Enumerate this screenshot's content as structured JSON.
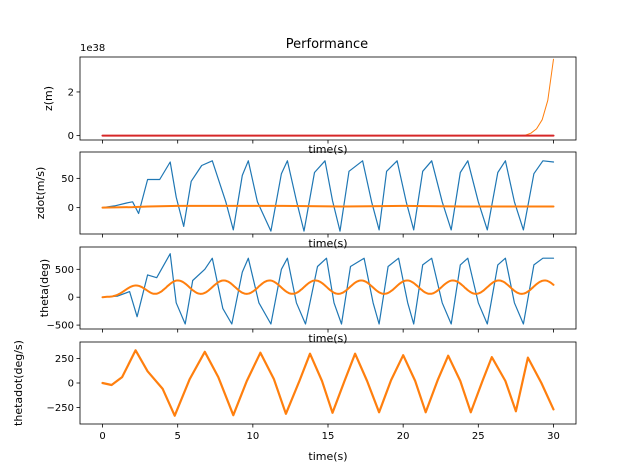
{
  "chart_data": [
    {
      "type": "line",
      "title": "Performance",
      "xlabel": "time(s)",
      "ylabel": "z(m)",
      "offset_text": "1e38",
      "xlim": [
        -1.5,
        31.5
      ],
      "ylim": [
        -0.2,
        3.6
      ],
      "yticks": [
        0,
        2
      ],
      "ytick_labels": [
        "0",
        "2"
      ],
      "x_tick_labels_shown": false,
      "series": [
        {
          "color": "#ff7f0e",
          "shape": "exp_growth",
          "x_start": 0,
          "x_end": 30,
          "x_onset": 28,
          "y_end": 3.5,
          "width": 1
        },
        {
          "color": "#d62728",
          "shape": "flat",
          "x_start": 0,
          "x_end": 30,
          "y": 0,
          "width": 2
        }
      ]
    },
    {
      "type": "line",
      "xlabel": "time(s)",
      "ylabel": "zdot(m/s)",
      "xlim": [
        -1.5,
        31.5
      ],
      "ylim": [
        -45,
        95
      ],
      "yticks": [
        0,
        50
      ],
      "ytick_labels": [
        "0",
        "50"
      ],
      "x_tick_labels_shown": false,
      "series": [
        {
          "color": "#1f77b4",
          "width": 1.2,
          "x": [
            0,
            0.8,
            1.6,
            2.0,
            2.4,
            3.0,
            3.8,
            4.5,
            4.9,
            5.4,
            5.9,
            6.6,
            7.3,
            8.2,
            8.7,
            9.3,
            9.7,
            10.3,
            11.2,
            11.9,
            12.3,
            12.9,
            13.4,
            14.1,
            14.8,
            15.3,
            15.8,
            16.4,
            17.3,
            17.9,
            18.4,
            18.9,
            19.6,
            20.2,
            20.7,
            21.3,
            21.9,
            22.6,
            23.2,
            23.8,
            24.3,
            25.0,
            25.6,
            26.3,
            26.8,
            27.4,
            28.0,
            28.7,
            29.3,
            30.0
          ],
          "y": [
            0,
            3,
            8,
            10,
            -10,
            48,
            48,
            78,
            18,
            -32,
            45,
            72,
            80,
            10,
            -38,
            55,
            80,
            10,
            -40,
            58,
            80,
            12,
            -40,
            60,
            80,
            12,
            -40,
            62,
            80,
            10,
            -38,
            62,
            80,
            10,
            -38,
            62,
            80,
            10,
            -38,
            60,
            80,
            10,
            -38,
            60,
            80,
            10,
            -38,
            58,
            80,
            78
          ]
        },
        {
          "color": "#ff7f0e",
          "width": 2,
          "x": [
            0,
            2,
            3,
            5,
            8,
            12,
            16,
            20,
            24,
            28,
            30
          ],
          "y": [
            0,
            1,
            2,
            3,
            3,
            3,
            2,
            3,
            2,
            2,
            2
          ]
        }
      ]
    },
    {
      "type": "line",
      "xlabel": "time(s)",
      "ylabel": "theta(deg)",
      "xlim": [
        -1.5,
        31.5
      ],
      "ylim": [
        -570,
        900
      ],
      "yticks": [
        -500,
        0,
        500
      ],
      "ytick_labels": [
        "−500",
        "0",
        "500"
      ],
      "x_tick_labels_shown": false,
      "series": [
        {
          "color": "#1f77b4",
          "width": 1.2,
          "x": [
            0,
            1,
            1.8,
            2.3,
            3.0,
            3.6,
            4.5,
            4.9,
            5.5,
            6.0,
            6.8,
            7.3,
            8.0,
            8.6,
            9.3,
            9.7,
            10.4,
            11.2,
            11.9,
            12.3,
            12.9,
            13.5,
            14.3,
            14.9,
            15.4,
            15.9,
            16.5,
            17.4,
            18.0,
            18.4,
            19.0,
            19.7,
            20.3,
            20.7,
            21.3,
            21.9,
            22.6,
            23.2,
            23.8,
            24.3,
            25.0,
            25.6,
            26.3,
            26.8,
            27.4,
            28.0,
            28.7,
            29.3,
            30.0
          ],
          "y": [
            0,
            20,
            100,
            -350,
            400,
            350,
            780,
            -100,
            -480,
            300,
            500,
            700,
            -200,
            -480,
            450,
            700,
            -100,
            -480,
            500,
            700,
            -100,
            -480,
            550,
            700,
            -100,
            -480,
            550,
            700,
            -100,
            -480,
            550,
            700,
            -100,
            -480,
            580,
            700,
            -100,
            -480,
            580,
            700,
            -100,
            -480,
            580,
            700,
            -100,
            -480,
            580,
            700,
            700
          ]
        },
        {
          "color": "#ff7f0e",
          "width": 2,
          "type": "sine_growth",
          "x_start": 0,
          "x_end": 30,
          "center": 180,
          "amplitude": 120,
          "period": 3.05
        }
      ]
    },
    {
      "type": "line",
      "xlabel": "time(s)",
      "ylabel": "thetadot(deg/s)",
      "xlim": [
        -1.5,
        31.5
      ],
      "ylim": [
        -420,
        420
      ],
      "yticks": [
        -250,
        0,
        250
      ],
      "ytick_labels": [
        "−250",
        "0",
        "250"
      ],
      "xticks": [
        0,
        5,
        10,
        15,
        20,
        25,
        30
      ],
      "xtick_labels": [
        "0",
        "5",
        "10",
        "15",
        "20",
        "25",
        "30"
      ],
      "x_tick_labels_shown": true,
      "series": [
        {
          "color": "#ff7f0e",
          "width": 2.2,
          "x": [
            0,
            0.6,
            1.3,
            2.2,
            3.0,
            4.0,
            4.8,
            5.8,
            6.8,
            7.7,
            8.7,
            9.6,
            10.5,
            11.4,
            12.2,
            13.1,
            13.8,
            14.6,
            15.3,
            16.1,
            16.8,
            17.6,
            18.4,
            19.2,
            20.0,
            20.8,
            21.5,
            22.3,
            23.0,
            23.8,
            24.5,
            25.3,
            25.9,
            26.8,
            27.5,
            28.3,
            29.2,
            30.0
          ],
          "y": [
            0,
            -20,
            60,
            335,
            120,
            -60,
            -335,
            40,
            320,
            60,
            -330,
            20,
            310,
            40,
            -315,
            20,
            300,
            20,
            -305,
            20,
            300,
            20,
            -300,
            30,
            285,
            20,
            -300,
            30,
            280,
            20,
            -300,
            30,
            265,
            20,
            -290,
            260,
            0,
            -270
          ]
        }
      ]
    }
  ]
}
